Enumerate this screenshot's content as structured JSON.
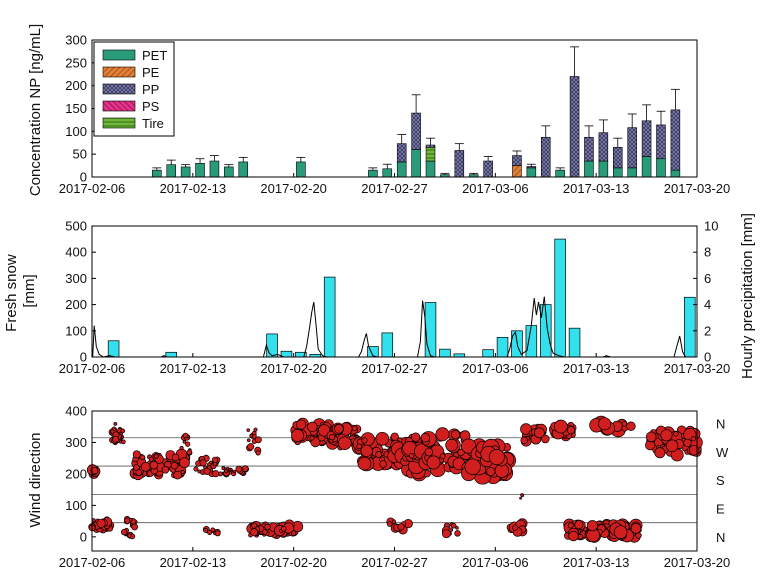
{
  "chart_data": [
    {
      "type": "bar",
      "stacked": true,
      "ylabel": "Concentration NP [ng/mL]",
      "ylim": [
        0,
        300
      ],
      "yticks": [
        0,
        50,
        100,
        150,
        200,
        250,
        300
      ],
      "x_range": [
        "2017-02-06",
        "2017-03-20"
      ],
      "x_ticks": [
        "2017-02-06",
        "2017-02-13",
        "2017-02-20",
        "2017-02-27",
        "2017-03-06",
        "2017-03-13",
        "2017-03-20"
      ],
      "legend_position": "top-left",
      "legend": [
        "PET",
        "PE",
        "PP",
        "PS",
        "Tire"
      ],
      "colors": {
        "PET": "#2a9b78",
        "PE": "#d2691e",
        "PP": "#7f7fb0",
        "PS": "#d6277b",
        "Tire": "#6fb83c"
      },
      "bars": [
        {
          "date": "2017-02-10",
          "PET": 15,
          "err": 5
        },
        {
          "date": "2017-02-11",
          "PET": 27,
          "err": 10
        },
        {
          "date": "2017-02-12",
          "PET": 22,
          "err": 5
        },
        {
          "date": "2017-02-13",
          "PET": 30,
          "err": 10
        },
        {
          "date": "2017-02-14",
          "PET": 35,
          "err": 12
        },
        {
          "date": "2017-02-15",
          "PET": 22,
          "err": 5
        },
        {
          "date": "2017-02-16",
          "PET": 33,
          "err": 10
        },
        {
          "date": "2017-02-20",
          "PET": 33,
          "err": 10
        },
        {
          "date": "2017-02-25",
          "PET": 15,
          "err": 5
        },
        {
          "date": "2017-02-26",
          "PET": 18,
          "err": 10
        },
        {
          "date": "2017-02-27",
          "PET": 33,
          "PP": 40,
          "err": 20
        },
        {
          "date": "2017-02-28",
          "PET": 60,
          "PP": 80,
          "err": 40
        },
        {
          "date": "2017-03-01",
          "PET": 35,
          "Tire": 30,
          "PP": 5,
          "err": 15
        },
        {
          "date": "2017-03-02",
          "PET": 5,
          "err": 3
        },
        {
          "date": "2017-03-03",
          "PP": 58,
          "err": 15
        },
        {
          "date": "2017-03-04",
          "PET": 5,
          "err": 3
        },
        {
          "date": "2017-03-05",
          "PP": 35,
          "err": 10
        },
        {
          "date": "2017-03-07",
          "PE": 25,
          "PP": 22,
          "err": 10
        },
        {
          "date": "2017-03-08",
          "PET": 20,
          "PP": 3,
          "err": 5
        },
        {
          "date": "2017-03-09",
          "PP": 87,
          "err": 25
        },
        {
          "date": "2017-03-10",
          "PET": 15,
          "err": 5
        },
        {
          "date": "2017-03-11",
          "PP": 220,
          "err": 65
        },
        {
          "date": "2017-03-12",
          "PET": 35,
          "PP": 52,
          "err": 25
        },
        {
          "date": "2017-03-13",
          "PET": 35,
          "PP": 62,
          "err": 28
        },
        {
          "date": "2017-03-14",
          "PET": 20,
          "PP": 45,
          "err": 20
        },
        {
          "date": "2017-03-15",
          "PET": 20,
          "PP": 88,
          "err": 30
        },
        {
          "date": "2017-03-16",
          "PET": 45,
          "PP": 78,
          "err": 35
        },
        {
          "date": "2017-03-17",
          "PET": 40,
          "PP": 74,
          "err": 30
        },
        {
          "date": "2017-03-18",
          "PET": 15,
          "PP": 132,
          "err": 45
        }
      ]
    },
    {
      "type": "bar",
      "ylabel": "Fresh snow\n[mm]",
      "ylim": [
        0,
        500
      ],
      "yticks": [
        0,
        100,
        200,
        300,
        400,
        500
      ],
      "y2label": "Hourly precipitation [mm]",
      "y2lim": [
        0,
        10
      ],
      "y2ticks": [
        0,
        2,
        4,
        6,
        8,
        10
      ],
      "x_range": [
        "2017-02-06",
        "2017-03-20"
      ],
      "x_ticks": [
        "2017-02-06",
        "2017-02-13",
        "2017-02-20",
        "2017-02-27",
        "2017-03-06",
        "2017-03-13",
        "2017-03-20"
      ],
      "colors": {
        "snow": "#33e0ee",
        "precip": "#000000"
      },
      "snow": [
        {
          "date": "2017-02-07",
          "value": 62
        },
        {
          "date": "2017-02-11",
          "value": 18
        },
        {
          "date": "2017-02-18",
          "value": 88
        },
        {
          "date": "2017-02-19",
          "value": 22
        },
        {
          "date": "2017-02-20",
          "value": 18
        },
        {
          "date": "2017-02-21",
          "value": 10
        },
        {
          "date": "2017-02-22",
          "value": 305
        },
        {
          "date": "2017-02-25",
          "value": 40
        },
        {
          "date": "2017-02-26",
          "value": 92
        },
        {
          "date": "2017-03-01",
          "value": 208
        },
        {
          "date": "2017-03-02",
          "value": 30
        },
        {
          "date": "2017-03-03",
          "value": 12
        },
        {
          "date": "2017-03-05",
          "value": 28
        },
        {
          "date": "2017-03-06",
          "value": 75
        },
        {
          "date": "2017-03-07",
          "value": 100
        },
        {
          "date": "2017-03-08",
          "value": 120
        },
        {
          "date": "2017-03-09",
          "value": 200
        },
        {
          "date": "2017-03-10",
          "value": 450
        },
        {
          "date": "2017-03-11",
          "value": 110
        },
        {
          "date": "2017-03-19",
          "value": 228
        }
      ],
      "precip": [
        {
          "d": 0.05,
          "v": 0
        },
        {
          "d": 0.15,
          "v": 2.4
        },
        {
          "d": 0.3,
          "v": 0.8
        },
        {
          "d": 0.5,
          "v": 0.2
        },
        {
          "d": 0.8,
          "v": 0
        },
        {
          "d": 1.2,
          "v": 0.1
        },
        {
          "d": 1.6,
          "v": 0
        },
        {
          "d": 4.8,
          "v": 0
        },
        {
          "d": 5.0,
          "v": 0.1
        },
        {
          "d": 5.2,
          "v": 0
        },
        {
          "d": 11.9,
          "v": 0
        },
        {
          "d": 12.1,
          "v": 0.9
        },
        {
          "d": 12.3,
          "v": 0.3
        },
        {
          "d": 12.5,
          "v": 0.1
        },
        {
          "d": 12.9,
          "v": 0.2
        },
        {
          "d": 13.3,
          "v": 0
        },
        {
          "d": 14.7,
          "v": 0
        },
        {
          "d": 14.9,
          "v": 0.8
        },
        {
          "d": 15.1,
          "v": 2.2
        },
        {
          "d": 15.25,
          "v": 3.4
        },
        {
          "d": 15.4,
          "v": 4.2
        },
        {
          "d": 15.55,
          "v": 2.5
        },
        {
          "d": 15.7,
          "v": 0.6
        },
        {
          "d": 16.0,
          "v": 0.1
        },
        {
          "d": 16.3,
          "v": 0
        },
        {
          "d": 18.5,
          "v": 0
        },
        {
          "d": 18.7,
          "v": 0.4
        },
        {
          "d": 18.9,
          "v": 1.3
        },
        {
          "d": 19.05,
          "v": 1.8
        },
        {
          "d": 19.2,
          "v": 0.8
        },
        {
          "d": 19.5,
          "v": 0.1
        },
        {
          "d": 19.8,
          "v": 0
        },
        {
          "d": 22.6,
          "v": 0
        },
        {
          "d": 22.8,
          "v": 1.2
        },
        {
          "d": 22.95,
          "v": 4.3
        },
        {
          "d": 23.1,
          "v": 3.1
        },
        {
          "d": 23.25,
          "v": 1.0
        },
        {
          "d": 23.5,
          "v": 0.1
        },
        {
          "d": 23.8,
          "v": 0
        },
        {
          "d": 28.8,
          "v": 0
        },
        {
          "d": 29.0,
          "v": 0.6
        },
        {
          "d": 29.2,
          "v": 1.6
        },
        {
          "d": 29.4,
          "v": 1.9
        },
        {
          "d": 29.55,
          "v": 0.8
        },
        {
          "d": 29.8,
          "v": 0.2
        },
        {
          "d": 30.2,
          "v": 0.5
        },
        {
          "d": 30.5,
          "v": 2.4
        },
        {
          "d": 30.7,
          "v": 4.5
        },
        {
          "d": 30.85,
          "v": 3.2
        },
        {
          "d": 31.0,
          "v": 4.2
        },
        {
          "d": 31.2,
          "v": 3.0
        },
        {
          "d": 31.4,
          "v": 4.6
        },
        {
          "d": 31.6,
          "v": 2.2
        },
        {
          "d": 31.8,
          "v": 1.0
        },
        {
          "d": 32.0,
          "v": 0.3
        },
        {
          "d": 32.4,
          "v": 0.1
        },
        {
          "d": 32.8,
          "v": 0
        },
        {
          "d": 35.5,
          "v": 0
        },
        {
          "d": 35.7,
          "v": 0.1
        },
        {
          "d": 36.0,
          "v": 0
        },
        {
          "d": 40.4,
          "v": 0
        },
        {
          "d": 40.6,
          "v": 0.8
        },
        {
          "d": 40.8,
          "v": 1.6
        },
        {
          "d": 41.0,
          "v": 0.4
        },
        {
          "d": 41.2,
          "v": 0
        }
      ]
    },
    {
      "type": "scatter",
      "ylabel": "Wind direction",
      "ylim": [
        0,
        400
      ],
      "yticks": [
        0,
        100,
        200,
        300,
        400
      ],
      "right_labels": [
        "N",
        "W",
        "S",
        "E",
        "N"
      ],
      "gridlines": [
        45,
        135,
        225,
        315
      ],
      "x_range": [
        "2017-02-06",
        "2017-03-20"
      ],
      "x_ticks": [
        "2017-02-06",
        "2017-02-13",
        "2017-02-20",
        "2017-02-27",
        "2017-03-06",
        "2017-03-13",
        "2017-03-20"
      ],
      "colors": {
        "marker_fill": "#d11f1f",
        "marker_edge": "#000000"
      },
      "clusters": [
        {
          "x0": 0.0,
          "x1": 0.2,
          "y0": 195,
          "y1": 215,
          "s": 6,
          "n": 4
        },
        {
          "x0": 0.0,
          "x1": 1.3,
          "y0": 20,
          "y1": 55,
          "s": 4,
          "n": 40
        },
        {
          "x0": 1.3,
          "x1": 2.2,
          "y0": 300,
          "y1": 360,
          "s": 3,
          "n": 30
        },
        {
          "x0": 2.2,
          "x1": 3.0,
          "y0": 0,
          "y1": 60,
          "s": 3,
          "n": 18
        },
        {
          "x0": 3.0,
          "x1": 6.5,
          "y0": 195,
          "y1": 265,
          "s": 5,
          "n": 80
        },
        {
          "x0": 6.2,
          "x1": 6.9,
          "y0": 260,
          "y1": 330,
          "s": 3,
          "n": 10
        },
        {
          "x0": 7.2,
          "x1": 8.7,
          "y0": 200,
          "y1": 250,
          "s": 3,
          "n": 25
        },
        {
          "x0": 7.8,
          "x1": 8.8,
          "y0": 10,
          "y1": 30,
          "s": 3,
          "n": 8
        },
        {
          "x0": 8.9,
          "x1": 10.8,
          "y0": 200,
          "y1": 220,
          "s": 3,
          "n": 25
        },
        {
          "x0": 10.8,
          "x1": 11.6,
          "y0": 260,
          "y1": 350,
          "s": 4,
          "n": 12
        },
        {
          "x0": 11.0,
          "x1": 14.5,
          "y0": 5,
          "y1": 40,
          "s": 5,
          "n": 45
        },
        {
          "x0": 14.0,
          "x1": 16.5,
          "y0": 300,
          "y1": 360,
          "s": 6,
          "n": 45
        },
        {
          "x0": 16.5,
          "x1": 18.5,
          "y0": 280,
          "y1": 350,
          "s": 6,
          "n": 40
        },
        {
          "x0": 18.5,
          "x1": 21.5,
          "y0": 230,
          "y1": 320,
          "s": 7,
          "n": 50
        },
        {
          "x0": 20.5,
          "x1": 22.0,
          "y0": 20,
          "y1": 50,
          "s": 4,
          "n": 12
        },
        {
          "x0": 21.5,
          "x1": 24.0,
          "y0": 200,
          "y1": 290,
          "s": 8,
          "n": 45
        },
        {
          "x0": 21.8,
          "x1": 23.0,
          "y0": 250,
          "y1": 320,
          "s": 7,
          "n": 20
        },
        {
          "x0": 23.0,
          "x1": 26.0,
          "y0": 220,
          "y1": 330,
          "s": 7,
          "n": 40
        },
        {
          "x0": 24.5,
          "x1": 25.5,
          "y0": 10,
          "y1": 45,
          "s": 4,
          "n": 10
        },
        {
          "x0": 26.0,
          "x1": 29.0,
          "y0": 190,
          "y1": 290,
          "s": 8,
          "n": 55
        },
        {
          "x0": 29.0,
          "x1": 30.0,
          "y0": 15,
          "y1": 45,
          "s": 5,
          "n": 14
        },
        {
          "x0": 29.5,
          "x1": 30.0,
          "y0": 120,
          "y1": 145,
          "s": 2,
          "n": 3
        },
        {
          "x0": 30.0,
          "x1": 31.5,
          "y0": 300,
          "y1": 350,
          "s": 5,
          "n": 25
        },
        {
          "x0": 32.0,
          "x1": 33.5,
          "y0": 320,
          "y1": 360,
          "s": 6,
          "n": 22
        },
        {
          "x0": 33.0,
          "x1": 38.0,
          "y0": 0,
          "y1": 40,
          "s": 6,
          "n": 90
        },
        {
          "x0": 35.0,
          "x1": 37.5,
          "y0": 340,
          "y1": 360,
          "s": 7,
          "n": 15
        },
        {
          "x0": 38.5,
          "x1": 42.0,
          "y0": 260,
          "y1": 340,
          "s": 6,
          "n": 60
        }
      ]
    }
  ]
}
